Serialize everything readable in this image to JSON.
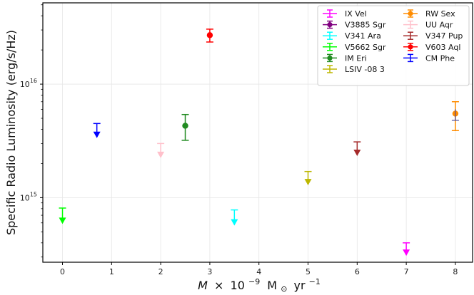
{
  "chart_data": {
    "type": "scatter",
    "title": "",
    "xlabel_parts": {
      "mdot": "M",
      "times": "×",
      "ten": "10",
      "exp": "−9",
      "msun": "M",
      "sun": "⊙",
      "yr": "yr",
      "yrexp": "−1"
    },
    "ylabel": "Specific Radio Luminosity (erg/s/Hz)",
    "y_scale": "log",
    "xlim": [
      -0.4,
      8.35
    ],
    "ylim": [
      270000000000000.0,
      5.2e+16
    ],
    "x_ticks": [
      0,
      1,
      2,
      3,
      4,
      5,
      6,
      7,
      8
    ],
    "y_ticks": [
      {
        "value": 1000000000000000.0,
        "base": "10",
        "exp": "15"
      },
      {
        "value": 1e+16,
        "base": "10",
        "exp": "16"
      }
    ],
    "grid": true,
    "legend_position": "top-right",
    "series": [
      {
        "name": "IX Vel",
        "color": "#ff00ff",
        "kind": "upper_limit",
        "x": 7.0,
        "y": 330000000000000.0,
        "err_low": 0,
        "err_high": 70000000000000.0
      },
      {
        "name": "V3885 Sgr",
        "color": "#800080",
        "kind": "detection",
        "x": null,
        "y": null
      },
      {
        "name": "V341 Ara",
        "color": "#00ffff",
        "kind": "upper_limit",
        "x": 3.5,
        "y": 610000000000000.0,
        "err_low": 0,
        "err_high": 170000000000000.0
      },
      {
        "name": "V5662 Sgr",
        "color": "#00ff00",
        "kind": "upper_limit",
        "x": 0.0,
        "y": 630000000000000.0,
        "err_low": 0,
        "err_high": 180000000000000.0
      },
      {
        "name": "IM Eri",
        "color": "#228b22",
        "kind": "detection",
        "x": 2.5,
        "y": 4300000000000000.0,
        "err_low": 1100000000000000.0,
        "err_high": 1100000000000000.0
      },
      {
        "name": "LSIV -08 3",
        "color": "#bdb700",
        "kind": "upper_limit",
        "x": 5.0,
        "y": 1380000000000000.0,
        "err_low": 0,
        "err_high": 320000000000000.0
      },
      {
        "name": "RW Sex",
        "color": "#ff8c00",
        "kind": "detection",
        "x": 8.0,
        "y": 5500000000000000.0,
        "err_low": 1600000000000000.0,
        "err_high": 1500000000000000.0
      },
      {
        "name": "UU Aqr",
        "color": "#ffc0cb",
        "kind": "upper_limit",
        "x": 2.0,
        "y": 2400000000000000.0,
        "err_low": 0,
        "err_high": 600000000000000.0
      },
      {
        "name": "V347 Pup",
        "color": "#a52a2a",
        "kind": "upper_limit",
        "x": 6.0,
        "y": 2500000000000000.0,
        "err_low": 0,
        "err_high": 600000000000000.0
      },
      {
        "name": "V603 Aql",
        "color": "#ff0000",
        "kind": "detection",
        "x": 3.0,
        "y": 2.7e+16,
        "err_low": 3500000000000000.0,
        "err_high": 3500000000000000.0
      },
      {
        "name": "CM Phe",
        "color": "#0000ff",
        "kind": "upper_limit",
        "x": 0.7,
        "y": 3600000000000000.0,
        "err_low": 0,
        "err_high": 900000000000000.0
      }
    ],
    "extra_marker": {
      "x": 8.0,
      "color": "#4b4b9b",
      "y_band_low": 4800000000000000.0,
      "y_band_high": 6000000000000000.0
    }
  }
}
